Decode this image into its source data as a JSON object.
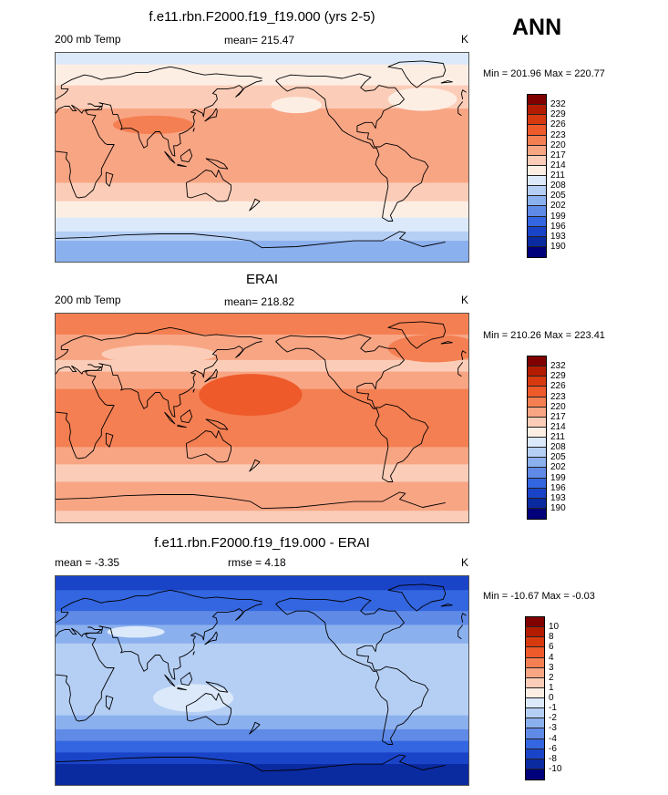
{
  "season": "ANN",
  "panels": [
    {
      "id": "model",
      "title": "f.e11.rbn.F2000.f19_f19.000 (yrs 2-5)",
      "left_label": "200 mb Temp",
      "mid_label": "mean= 215.47",
      "units": "K",
      "minmax": "Min = 201.96 Max = 220.77",
      "levels": [
        "232",
        "229",
        "226",
        "223",
        "220",
        "217",
        "214",
        "211",
        "208",
        "205",
        "202",
        "199",
        "196",
        "193",
        "190"
      ],
      "colors": [
        "#800000",
        "#b31c00",
        "#d83a10",
        "#ee5a2a",
        "#f47f52",
        "#f8a584",
        "#fbcdb8",
        "#fdeee4",
        "#dbe9fb",
        "#b5cff4",
        "#8bb0ee",
        "#5f8ae6",
        "#3366e0",
        "#1a44c8",
        "#0a2aa0",
        "#00007a"
      ],
      "bands": [
        {
          "lat": 90,
          "color": "#dbe9fb"
        },
        {
          "lat": 80,
          "color": "#fdeee4"
        },
        {
          "lat": 62,
          "color": "#fbcdb8"
        },
        {
          "lat": 42,
          "color": "#f8a584"
        },
        {
          "lat": -22,
          "color": "#fbcdb8"
        },
        {
          "lat": -38,
          "color": "#fdeee4"
        },
        {
          "lat": -52,
          "color": "#dbe9fb"
        },
        {
          "lat": -64,
          "color": "#b5cff4"
        },
        {
          "lat": -72,
          "color": "#8bb0ee"
        }
      ],
      "blobs": [
        {
          "lon": 85,
          "lat": 28,
          "rx": 35,
          "ry": 8,
          "color": "#f47f52"
        },
        {
          "lon": -150,
          "lat": 45,
          "rx": 22,
          "ry": 7,
          "color": "#fdeee4"
        },
        {
          "lon": -40,
          "lat": 50,
          "rx": 30,
          "ry": 10,
          "color": "#fdeee4"
        }
      ]
    },
    {
      "id": "obs",
      "title": "ERAI",
      "left_label": "200 mb Temp",
      "mid_label": "mean= 218.82",
      "units": "K",
      "minmax": "Min = 210.26 Max = 223.41",
      "levels": [
        "232",
        "229",
        "226",
        "223",
        "220",
        "217",
        "214",
        "211",
        "208",
        "205",
        "202",
        "199",
        "196",
        "193",
        "190"
      ],
      "colors": [
        "#800000",
        "#b31c00",
        "#d83a10",
        "#ee5a2a",
        "#f47f52",
        "#f8a584",
        "#fbcdb8",
        "#fdeee4",
        "#dbe9fb",
        "#b5cff4",
        "#8bb0ee",
        "#5f8ae6",
        "#3366e0",
        "#1a44c8",
        "#0a2aa0",
        "#00007a"
      ],
      "bands": [
        {
          "lat": 90,
          "color": "#f47f52"
        },
        {
          "lat": 72,
          "color": "#f8a584"
        },
        {
          "lat": 50,
          "color": "#fbcdb8"
        },
        {
          "lat": 40,
          "color": "#f8a584"
        },
        {
          "lat": 25,
          "color": "#f47f52"
        },
        {
          "lat": -25,
          "color": "#f8a584"
        },
        {
          "lat": -40,
          "color": "#fbcdb8"
        },
        {
          "lat": -55,
          "color": "#f8a584"
        },
        {
          "lat": -80,
          "color": "#fbcdb8"
        }
      ],
      "blobs": [
        {
          "lon": 170,
          "lat": 20,
          "rx": 45,
          "ry": 18,
          "color": "#ee5a2a"
        },
        {
          "lon": 90,
          "lat": 55,
          "rx": 50,
          "ry": 8,
          "color": "#fbcdb8"
        },
        {
          "lon": -30,
          "lat": 60,
          "rx": 40,
          "ry": 12,
          "color": "#f47f52"
        }
      ]
    },
    {
      "id": "diff",
      "title": "f.e11.rbn.F2000.f19_f19.000 - ERAI",
      "left_label": "mean =  -3.35",
      "mid_label": "rmse =   4.18",
      "units": "K",
      "minmax": "Min = -10.67 Max =  -0.03",
      "levels": [
        "10",
        "8",
        "6",
        "4",
        "3",
        "2",
        "1",
        "0",
        "-1",
        "-2",
        "-3",
        "-4",
        "-6",
        "-8",
        "-10"
      ],
      "colors": [
        "#800000",
        "#b31c00",
        "#d83a10",
        "#ee5a2a",
        "#f47f52",
        "#f8a584",
        "#fbcdb8",
        "#fdeee4",
        "#dbe9fb",
        "#b5cff4",
        "#8bb0ee",
        "#5f8ae6",
        "#3366e0",
        "#1a44c8",
        "#0a2aa0",
        "#00007a"
      ],
      "bands": [
        {
          "lat": 90,
          "color": "#1a44c8"
        },
        {
          "lat": 78,
          "color": "#3366e0"
        },
        {
          "lat": 60,
          "color": "#5f8ae6"
        },
        {
          "lat": 48,
          "color": "#8bb0ee"
        },
        {
          "lat": 32,
          "color": "#b5cff4"
        },
        {
          "lat": -30,
          "color": "#8bb0ee"
        },
        {
          "lat": -42,
          "color": "#5f8ae6"
        },
        {
          "lat": -52,
          "color": "#3366e0"
        },
        {
          "lat": -62,
          "color": "#1a44c8"
        },
        {
          "lat": -72,
          "color": "#0a2aa0"
        }
      ],
      "blobs": [
        {
          "lon": 120,
          "lat": -15,
          "rx": 35,
          "ry": 12,
          "color": "#dbe9fb"
        },
        {
          "lon": 70,
          "lat": 42,
          "rx": 25,
          "ry": 5,
          "color": "#dbe9fb"
        },
        {
          "lon": -10,
          "lat": 0,
          "rx": 30,
          "ry": 10,
          "color": "#b5cff4"
        }
      ]
    }
  ]
}
